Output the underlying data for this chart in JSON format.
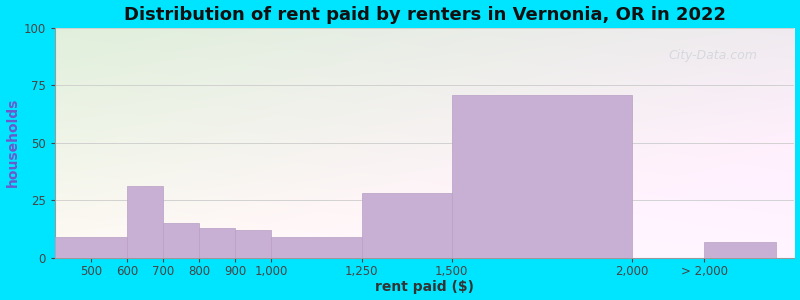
{
  "title": "Distribution of rent paid by renters in Vernonia, OR in 2022",
  "xlabel": "rent paid ($)",
  "ylabel": "households",
  "bin_left": [
    400,
    600,
    700,
    800,
    900,
    1000,
    1250,
    1500,
    2000,
    2200
  ],
  "bin_right": [
    600,
    700,
    800,
    900,
    1000,
    1250,
    1500,
    2000,
    2200,
    2400
  ],
  "values": [
    9,
    31,
    15,
    13,
    12,
    9,
    28,
    71,
    0,
    7
  ],
  "xtick_positions": [
    500,
    600,
    700,
    800,
    900,
    1000,
    1250,
    1500,
    2000,
    2200
  ],
  "xtick_labels": [
    "500",
    "600",
    "700",
    "800",
    "900",
    "1,000",
    "1,250",
    "1,500",
    "2,000",
    "> 2,000"
  ],
  "bar_color": "#c8afd4",
  "bar_edge_color": "#b89fc4",
  "ylim": [
    0,
    100
  ],
  "yticks": [
    0,
    25,
    50,
    75,
    100
  ],
  "xlim": [
    400,
    2450
  ],
  "outer_bg": "#00e5ff",
  "title_fontsize": 13,
  "axis_label_fontsize": 10,
  "tick_fontsize": 8.5,
  "watermark_text": "City-Data.com",
  "watermark_color": "#c0c8d0",
  "watermark_alpha": 0.55
}
